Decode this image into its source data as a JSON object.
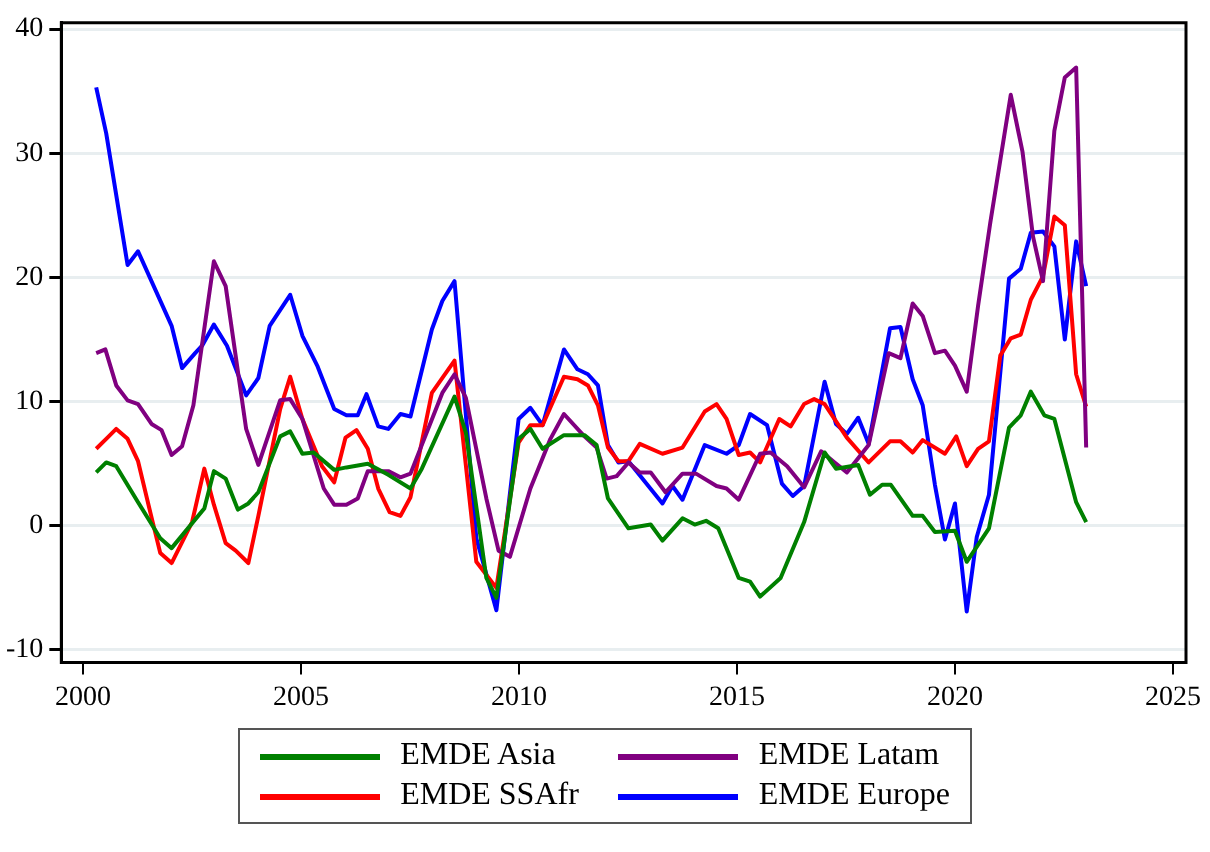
{
  "chart_data": {
    "type": "line",
    "xlim": [
      1999.5,
      2025.3
    ],
    "xticks": [
      2000,
      2005,
      2010,
      2015,
      2020,
      2025
    ],
    "ylim": [
      -11,
      40.5
    ],
    "yticks": [
      -10,
      0,
      10,
      20,
      30,
      40
    ],
    "grid": "y",
    "legend": "bottom",
    "marker": "none",
    "line_style": "solid",
    "series": [
      {
        "name": "EMDE Asia",
        "color": "#008000",
        "x": [
          2000.3,
          2000.53,
          2000.76,
          2001.26,
          2001.77,
          2002.03,
          2002.78,
          2003.0,
          2003.27,
          2003.55,
          2003.79,
          2004.02,
          2004.52,
          2004.75,
          2005.03,
          2005.29,
          2005.76,
          2006.04,
          2006.53,
          2007.0,
          2007.51,
          2007.77,
          2008.52,
          2008.78,
          2009.25,
          2009.48,
          2009.99,
          2010.26,
          2010.54,
          2011.03,
          2011.5,
          2011.78,
          2012.04,
          2012.51,
          2013.02,
          2013.29,
          2013.75,
          2014.03,
          2014.29,
          2014.57,
          2015.04,
          2015.3,
          2015.53,
          2016.0,
          2016.54,
          2017.01,
          2017.27,
          2017.78,
          2018.05,
          2018.33,
          2018.53,
          2019.03,
          2019.26,
          2019.54,
          2020.0,
          2020.27,
          2020.78,
          2021.24,
          2021.51,
          2021.74,
          2022.05,
          2022.28,
          2022.78,
          2023.01
        ],
        "values": [
          4.3,
          5.1,
          4.8,
          1.9,
          -1.0,
          -1.8,
          1.4,
          4.4,
          3.8,
          1.3,
          1.8,
          2.7,
          7.2,
          7.6,
          5.8,
          5.9,
          4.5,
          4.7,
          5.0,
          4.1,
          3.0,
          4.6,
          10.4,
          7.5,
          -4.2,
          -5.8,
          7.0,
          7.8,
          6.2,
          7.3,
          7.3,
          6.5,
          2.2,
          -0.2,
          0.1,
          -1.2,
          0.6,
          0.1,
          0.4,
          -0.2,
          -4.2,
          -4.5,
          -5.7,
          -4.2,
          0.3,
          5.9,
          4.6,
          4.9,
          2.5,
          3.3,
          3.3,
          0.8,
          0.8,
          -0.5,
          -0.4,
          -2.9,
          -0.2,
          7.9,
          8.9,
          10.8,
          8.9,
          8.6,
          1.9,
          0.3
        ]
      },
      {
        "name": "EMDE Latam",
        "color": "#800080",
        "x": [
          2000.3,
          2000.51,
          2000.76,
          2001.02,
          2001.26,
          2001.57,
          2001.8,
          2002.03,
          2002.27,
          2002.53,
          2003.0,
          2003.27,
          2003.74,
          2004.02,
          2004.52,
          2004.75,
          2005.03,
          2005.52,
          2005.76,
          2006.04,
          2006.3,
          2006.53,
          2007.0,
          2007.28,
          2007.51,
          2008.24,
          2008.52,
          2008.78,
          2009.25,
          2009.53,
          2009.79,
          2010.26,
          2010.72,
          2011.03,
          2011.5,
          2011.78,
          2012.01,
          2012.24,
          2012.51,
          2012.77,
          2013.02,
          2013.36,
          2013.75,
          2014.06,
          2014.53,
          2014.76,
          2015.04,
          2015.53,
          2015.77,
          2016.15,
          2016.54,
          2016.93,
          2017.24,
          2017.52,
          2018.02,
          2018.48,
          2018.75,
          2019.03,
          2019.26,
          2019.54,
          2019.77,
          2020.0,
          2020.27,
          2020.53,
          2020.81,
          2021.28,
          2021.55,
          2021.79,
          2022.02,
          2022.28,
          2022.52,
          2022.78,
          2023.01
        ],
        "values": [
          13.9,
          14.2,
          11.3,
          10.1,
          9.8,
          8.2,
          7.7,
          5.7,
          6.4,
          9.7,
          21.3,
          19.3,
          7.8,
          4.9,
          10.1,
          10.2,
          8.6,
          3.0,
          1.7,
          1.7,
          2.2,
          4.4,
          4.4,
          3.9,
          4.2,
          10.7,
          12.2,
          10.3,
          2.2,
          -2.0,
          -2.5,
          3.0,
          7.0,
          9.0,
          7.2,
          6.3,
          3.8,
          4.0,
          5.1,
          4.3,
          4.3,
          2.7,
          4.2,
          4.2,
          3.2,
          3.0,
          2.1,
          5.8,
          5.9,
          4.8,
          3.1,
          6.0,
          5.1,
          4.3,
          6.5,
          13.9,
          13.5,
          17.9,
          16.9,
          13.9,
          14.1,
          12.9,
          10.8,
          17.7,
          24.4,
          34.7,
          30.1,
          23.3,
          19.7,
          31.8,
          36.1,
          36.9,
          6.3
        ]
      },
      {
        "name": "EMDE SSAfr",
        "color": "#ff0000",
        "x": [
          2000.3,
          2000.53,
          2000.76,
          2001.02,
          2001.26,
          2001.54,
          2001.77,
          2002.03,
          2002.5,
          2002.78,
          2003.0,
          2003.27,
          2003.5,
          2003.79,
          2004.02,
          2004.52,
          2004.75,
          2005.03,
          2005.48,
          2005.76,
          2006.02,
          2006.27,
          2006.53,
          2006.77,
          2007.03,
          2007.28,
          2007.51,
          2008.0,
          2008.52,
          2009.02,
          2009.48,
          2009.99,
          2010.26,
          2010.54,
          2011.03,
          2011.34,
          2011.58,
          2011.81,
          2012.04,
          2012.28,
          2012.51,
          2012.77,
          2013.29,
          2013.75,
          2014.26,
          2014.53,
          2014.76,
          2015.04,
          2015.3,
          2015.53,
          2015.97,
          2016.23,
          2016.54,
          2016.77,
          2017.01,
          2017.52,
          2018.02,
          2018.51,
          2018.75,
          2019.03,
          2019.26,
          2019.77,
          2020.03,
          2020.27,
          2020.53,
          2020.78,
          2021.04,
          2021.28,
          2021.51,
          2021.74,
          2022.02,
          2022.28,
          2022.52,
          2022.78,
          2023.01
        ],
        "values": [
          6.2,
          7.0,
          7.8,
          7.0,
          5.2,
          1.1,
          -2.2,
          -3.0,
          0.3,
          4.6,
          1.7,
          -1.4,
          -2.0,
          -3.0,
          0.8,
          9.4,
          12.0,
          8.6,
          4.8,
          3.5,
          7.1,
          7.7,
          6.2,
          3.0,
          1.1,
          0.8,
          2.3,
          10.7,
          13.3,
          -2.9,
          -5.0,
          6.7,
          8.1,
          8.1,
          12.0,
          11.8,
          11.3,
          9.7,
          6.3,
          5.2,
          5.2,
          6.6,
          5.8,
          6.3,
          9.2,
          9.8,
          8.6,
          5.7,
          5.9,
          5.1,
          8.6,
          8.0,
          9.8,
          10.2,
          9.8,
          7.1,
          5.1,
          6.8,
          6.8,
          5.9,
          6.9,
          5.8,
          7.2,
          4.8,
          6.2,
          6.8,
          13.7,
          15.1,
          15.4,
          18.2,
          20.1,
          24.9,
          24.2,
          12.2,
          9.6
        ]
      },
      {
        "name": "EMDE Europe",
        "color": "#0000ff",
        "x": [
          2000.3,
          2000.53,
          2001.02,
          2001.26,
          2002.03,
          2002.27,
          2002.57,
          2002.73,
          2003.0,
          2003.3,
          2003.74,
          2004.02,
          2004.28,
          2004.75,
          2005.03,
          2005.37,
          2005.76,
          2006.04,
          2006.3,
          2006.5,
          2006.77,
          2007.0,
          2007.28,
          2007.51,
          2008.0,
          2008.24,
          2008.52,
          2009.02,
          2009.48,
          2009.99,
          2010.26,
          2010.54,
          2011.03,
          2011.34,
          2011.58,
          2011.81,
          2012.04,
          2012.28,
          2012.51,
          2013.29,
          2013.52,
          2013.75,
          2014.26,
          2014.76,
          2015.04,
          2015.3,
          2015.69,
          2016.03,
          2016.28,
          2016.54,
          2017.01,
          2017.27,
          2017.52,
          2017.78,
          2018.02,
          2018.51,
          2018.75,
          2019.03,
          2019.26,
          2019.54,
          2019.77,
          2020.0,
          2020.27,
          2020.5,
          2020.78,
          2021.24,
          2021.51,
          2021.74,
          2022.02,
          2022.28,
          2022.52,
          2022.78,
          2023.01
        ],
        "values": [
          35.3,
          31.6,
          21.0,
          22.1,
          16.1,
          12.7,
          13.9,
          14.5,
          16.2,
          14.5,
          10.5,
          11.9,
          16.1,
          18.6,
          15.3,
          12.9,
          9.4,
          8.9,
          8.9,
          10.6,
          8.0,
          7.8,
          9.0,
          8.8,
          15.8,
          18.1,
          19.7,
          -1.0,
          -6.8,
          8.6,
          9.5,
          8.1,
          14.2,
          12.6,
          12.2,
          11.3,
          6.5,
          5.1,
          5.2,
          1.8,
          3.2,
          2.1,
          6.5,
          5.8,
          6.5,
          9.0,
          8.1,
          3.4,
          2.4,
          3.2,
          11.6,
          8.2,
          7.4,
          8.7,
          6.6,
          15.9,
          16.0,
          11.8,
          9.7,
          3.3,
          -1.1,
          1.8,
          -6.9,
          -0.9,
          2.5,
          19.9,
          20.7,
          23.6,
          23.7,
          22.5,
          15.0,
          22.9,
          19.3
        ]
      }
    ]
  }
}
